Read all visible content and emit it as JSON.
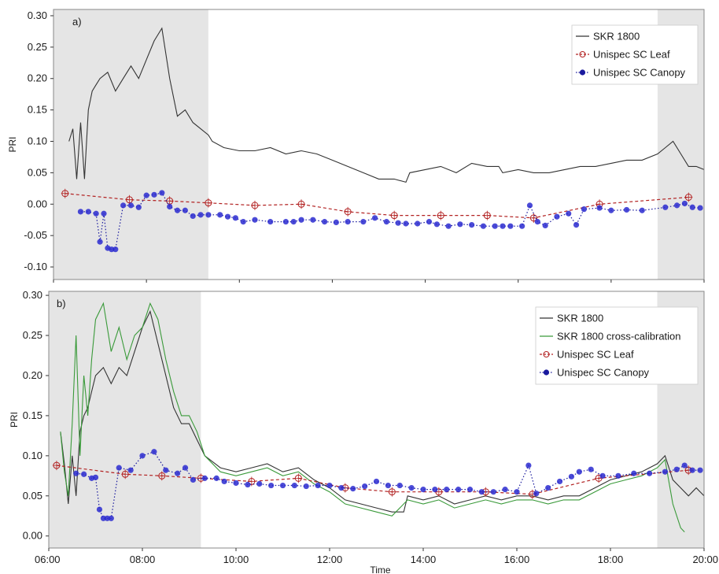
{
  "chart_data": [
    {
      "panel_label": "a)",
      "type": "line",
      "xlabel": "",
      "ylabel": "PRI",
      "xlim": [
        "06:00",
        "20:00"
      ],
      "ylim": [
        -0.12,
        0.31
      ],
      "yticks": [
        "-0.10",
        "-0.05",
        "0.00",
        "0.05",
        "0.10",
        "0.15",
        "0.20",
        "0.25",
        "0.30"
      ],
      "xticks": [],
      "shaded_periods": [
        [
          "06:00",
          "09:20"
        ],
        "19:00-20:00"
      ],
      "legend": {
        "position": "top-right"
      },
      "series": [
        {
          "name": "SKR 1800",
          "style": "solid",
          "color": "#333333",
          "x": [
            "06:20",
            "06:25",
            "06:30",
            "06:35",
            "06:40",
            "06:45",
            "06:50",
            "06:55",
            "07:00",
            "07:10",
            "07:20",
            "07:30",
            "07:40",
            "07:50",
            "08:00",
            "08:10",
            "08:20",
            "08:30",
            "08:40",
            "08:50",
            "09:00",
            "09:10",
            "09:20",
            "09:25",
            "09:40",
            "10:00",
            "10:20",
            "10:40",
            "11:00",
            "11:20",
            "11:40",
            "12:00",
            "12:20",
            "12:40",
            "13:00",
            "13:20",
            "13:35",
            "13:40",
            "14:00",
            "14:20",
            "14:40",
            "15:00",
            "15:20",
            "15:35",
            "15:40",
            "16:00",
            "16:20",
            "16:40",
            "17:00",
            "17:20",
            "17:40",
            "18:00",
            "18:20",
            "18:40",
            "19:00",
            "19:10",
            "19:20",
            "19:30",
            "19:40",
            "19:50",
            "20:00"
          ],
          "y": [
            0.1,
            0.12,
            0.04,
            0.13,
            0.04,
            0.15,
            0.18,
            0.19,
            0.2,
            0.21,
            0.18,
            0.2,
            0.22,
            0.2,
            0.23,
            0.26,
            0.28,
            0.2,
            0.14,
            0.15,
            0.13,
            0.12,
            0.11,
            0.1,
            0.09,
            0.085,
            0.085,
            0.09,
            0.08,
            0.085,
            0.08,
            0.07,
            0.06,
            0.05,
            0.04,
            0.04,
            0.035,
            0.05,
            0.055,
            0.06,
            0.05,
            0.065,
            0.06,
            0.06,
            0.05,
            0.055,
            0.05,
            0.05,
            0.055,
            0.06,
            0.06,
            0.065,
            0.07,
            0.07,
            0.08,
            0.09,
            0.1,
            0.08,
            0.06,
            0.06,
            0.055
          ]
        },
        {
          "name": "Unispec SC Leaf",
          "style": "dashed",
          "color": "#b22222",
          "x": [
            "06:15",
            "07:38",
            "08:30",
            "09:20",
            "10:20",
            "11:20",
            "12:20",
            "13:20",
            "14:20",
            "15:20",
            "16:20",
            "17:45",
            "19:40"
          ],
          "y": [
            0.017,
            0.007,
            0.005,
            0.002,
            -0.002,
            0.0,
            -0.012,
            -0.018,
            -0.018,
            -0.018,
            -0.022,
            0.0,
            0.011
          ]
        },
        {
          "name": "Unispec SC Canopy",
          "style": "dotted",
          "color": "#1a1a9e",
          "x": [
            "06:35",
            "06:45",
            "06:55",
            "07:00",
            "07:05",
            "07:10",
            "07:15",
            "07:20",
            "07:30",
            "07:40",
            "07:50",
            "08:00",
            "08:10",
            "08:20",
            "08:30",
            "08:40",
            "08:50",
            "09:00",
            "09:10",
            "09:20",
            "09:35",
            "09:45",
            "09:55",
            "10:05",
            "10:20",
            "10:40",
            "11:00",
            "11:10",
            "11:20",
            "11:35",
            "11:50",
            "12:05",
            "12:20",
            "12:40",
            "12:55",
            "13:10",
            "13:25",
            "13:35",
            "13:50",
            "14:05",
            "14:15",
            "14:30",
            "14:45",
            "15:00",
            "15:15",
            "15:30",
            "15:40",
            "15:50",
            "16:05",
            "16:15",
            "16:25",
            "16:35",
            "16:50",
            "17:05",
            "17:15",
            "17:25",
            "17:45",
            "18:00",
            "18:20",
            "18:40",
            "19:10",
            "19:25",
            "19:35",
            "19:45",
            "19:55"
          ],
          "y": [
            -0.012,
            -0.012,
            -0.015,
            -0.06,
            -0.015,
            -0.07,
            -0.072,
            -0.072,
            -0.002,
            -0.002,
            -0.005,
            0.014,
            0.015,
            0.018,
            -0.004,
            -0.01,
            -0.01,
            -0.019,
            -0.017,
            -0.017,
            -0.017,
            -0.02,
            -0.022,
            -0.028,
            -0.025,
            -0.028,
            -0.028,
            -0.028,
            -0.025,
            -0.025,
            -0.028,
            -0.029,
            -0.028,
            -0.028,
            -0.022,
            -0.028,
            -0.03,
            -0.031,
            -0.031,
            -0.028,
            -0.032,
            -0.035,
            -0.032,
            -0.033,
            -0.035,
            -0.035,
            -0.035,
            -0.035,
            -0.035,
            -0.002,
            -0.028,
            -0.034,
            -0.02,
            -0.015,
            -0.033,
            -0.008,
            -0.006,
            -0.01,
            -0.009,
            -0.01,
            -0.005,
            -0.002,
            0.001,
            -0.005,
            -0.006
          ]
        }
      ]
    },
    {
      "panel_label": "b)",
      "type": "line",
      "xlabel": "Time",
      "ylabel": "PRI",
      "xlim": [
        "06:00",
        "20:00"
      ],
      "ylim": [
        -0.015,
        0.305
      ],
      "yticks": [
        "0.00",
        "0.05",
        "0.10",
        "0.15",
        "0.20",
        "0.25",
        "0.30"
      ],
      "xticks": [
        "06:00",
        "08:00",
        "10:00",
        "12:00",
        "14:00",
        "16:00",
        "18:00",
        "20:00"
      ],
      "shaded_periods": [
        [
          "06:00",
          "09:15"
        ],
        "19:00-20:00"
      ],
      "legend": {
        "position": "top-right"
      },
      "series": [
        {
          "name": "SKR 1800",
          "style": "solid",
          "color": "#333333",
          "x": [
            "06:15",
            "06:20",
            "06:25",
            "06:30",
            "06:35",
            "06:40",
            "06:45",
            "06:50",
            "06:55",
            "07:00",
            "07:10",
            "07:20",
            "07:30",
            "07:40",
            "07:50",
            "08:00",
            "08:10",
            "08:20",
            "08:30",
            "08:40",
            "08:50",
            "09:00",
            "09:10",
            "09:20",
            "09:40",
            "10:00",
            "10:20",
            "10:40",
            "11:00",
            "11:20",
            "11:40",
            "12:00",
            "12:20",
            "12:40",
            "13:00",
            "13:20",
            "13:35",
            "13:40",
            "14:00",
            "14:20",
            "14:40",
            "15:00",
            "15:20",
            "15:40",
            "16:00",
            "16:20",
            "16:40",
            "17:00",
            "17:20",
            "17:40",
            "18:00",
            "18:20",
            "18:40",
            "19:00",
            "19:10",
            "19:20",
            "19:30",
            "19:40",
            "19:50",
            "20:00"
          ],
          "y": [
            0.13,
            0.09,
            0.04,
            0.1,
            0.05,
            0.13,
            0.15,
            0.16,
            0.18,
            0.2,
            0.21,
            0.19,
            0.21,
            0.2,
            0.23,
            0.26,
            0.28,
            0.24,
            0.2,
            0.16,
            0.14,
            0.14,
            0.12,
            0.1,
            0.085,
            0.08,
            0.085,
            0.09,
            0.08,
            0.085,
            0.07,
            0.06,
            0.045,
            0.04,
            0.035,
            0.03,
            0.03,
            0.05,
            0.045,
            0.05,
            0.04,
            0.045,
            0.05,
            0.045,
            0.05,
            0.05,
            0.045,
            0.05,
            0.05,
            0.06,
            0.07,
            0.075,
            0.08,
            0.09,
            0.1,
            0.07,
            0.06,
            0.05,
            0.06,
            0.05
          ]
        },
        {
          "name": "SKR 1800 cross-calibration",
          "style": "solid",
          "color": "#3a9a3a",
          "x": [
            "06:15",
            "06:20",
            "06:25",
            "06:30",
            "06:35",
            "06:40",
            "06:45",
            "06:50",
            "06:55",
            "07:00",
            "07:10",
            "07:20",
            "07:30",
            "07:40",
            "07:50",
            "08:00",
            "08:10",
            "08:20",
            "08:30",
            "08:40",
            "08:50",
            "09:00",
            "09:10",
            "09:20",
            "09:40",
            "10:00",
            "10:20",
            "10:40",
            "11:00",
            "11:20",
            "11:40",
            "12:00",
            "12:20",
            "12:40",
            "13:00",
            "13:20",
            "13:40",
            "14:00",
            "14:20",
            "14:40",
            "15:00",
            "15:20",
            "15:40",
            "16:00",
            "16:20",
            "16:40",
            "17:00",
            "17:20",
            "17:40",
            "18:00",
            "18:20",
            "18:40",
            "19:00",
            "19:10",
            "19:20",
            "19:30",
            "19:35"
          ],
          "y": [
            0.13,
            0.08,
            0.05,
            0.14,
            0.25,
            0.1,
            0.2,
            0.15,
            0.22,
            0.27,
            0.29,
            0.23,
            0.26,
            0.22,
            0.25,
            0.26,
            0.29,
            0.27,
            0.22,
            0.18,
            0.15,
            0.15,
            0.13,
            0.1,
            0.08,
            0.075,
            0.08,
            0.085,
            0.075,
            0.08,
            0.065,
            0.055,
            0.04,
            0.035,
            0.03,
            0.025,
            0.045,
            0.04,
            0.045,
            0.035,
            0.04,
            0.045,
            0.04,
            0.045,
            0.045,
            0.04,
            0.045,
            0.045,
            0.055,
            0.065,
            0.07,
            0.075,
            0.085,
            0.095,
            0.04,
            0.01,
            0.005
          ]
        },
        {
          "name": "Unispec SC Leaf",
          "style": "dashed",
          "color": "#b22222",
          "x": [
            "06:10",
            "07:38",
            "08:25",
            "09:15",
            "10:20",
            "11:20",
            "12:20",
            "13:20",
            "14:20",
            "15:20",
            "16:20",
            "17:45",
            "19:40"
          ],
          "y": [
            0.088,
            0.077,
            0.075,
            0.072,
            0.068,
            0.072,
            0.06,
            0.055,
            0.055,
            0.055,
            0.052,
            0.072,
            0.082
          ]
        },
        {
          "name": "Unispec SC Canopy",
          "style": "dotted",
          "color": "#1a1a9e",
          "x": [
            "06:35",
            "06:45",
            "06:55",
            "07:00",
            "07:05",
            "07:10",
            "07:15",
            "07:20",
            "07:30",
            "07:45",
            "08:00",
            "08:15",
            "08:30",
            "08:45",
            "08:55",
            "09:05",
            "09:20",
            "09:35",
            "09:45",
            "10:00",
            "10:15",
            "10:30",
            "10:45",
            "11:00",
            "11:15",
            "11:30",
            "11:45",
            "12:00",
            "12:15",
            "12:30",
            "12:45",
            "13:00",
            "13:15",
            "13:30",
            "13:45",
            "14:00",
            "14:15",
            "14:30",
            "14:45",
            "15:00",
            "15:15",
            "15:30",
            "15:45",
            "16:00",
            "16:15",
            "16:25",
            "16:40",
            "16:55",
            "17:10",
            "17:20",
            "17:35",
            "17:50",
            "18:10",
            "18:30",
            "18:50",
            "19:10",
            "19:25",
            "19:35",
            "19:45",
            "19:55"
          ],
          "y": [
            0.078,
            0.077,
            0.072,
            0.073,
            0.033,
            0.022,
            0.022,
            0.022,
            0.085,
            0.082,
            0.1,
            0.105,
            0.082,
            0.078,
            0.085,
            0.07,
            0.072,
            0.072,
            0.068,
            0.066,
            0.064,
            0.065,
            0.063,
            0.063,
            0.063,
            0.062,
            0.063,
            0.063,
            0.06,
            0.059,
            0.062,
            0.068,
            0.063,
            0.063,
            0.06,
            0.058,
            0.058,
            0.058,
            0.058,
            0.058,
            0.055,
            0.055,
            0.058,
            0.055,
            0.088,
            0.053,
            0.06,
            0.068,
            0.074,
            0.08,
            0.083,
            0.075,
            0.075,
            0.078,
            0.078,
            0.08,
            0.083,
            0.088,
            0.082,
            0.082
          ]
        }
      ]
    }
  ],
  "colors": {
    "shade": "#e5e5e5",
    "frame": "#888888",
    "text": "#1a1a1a"
  }
}
